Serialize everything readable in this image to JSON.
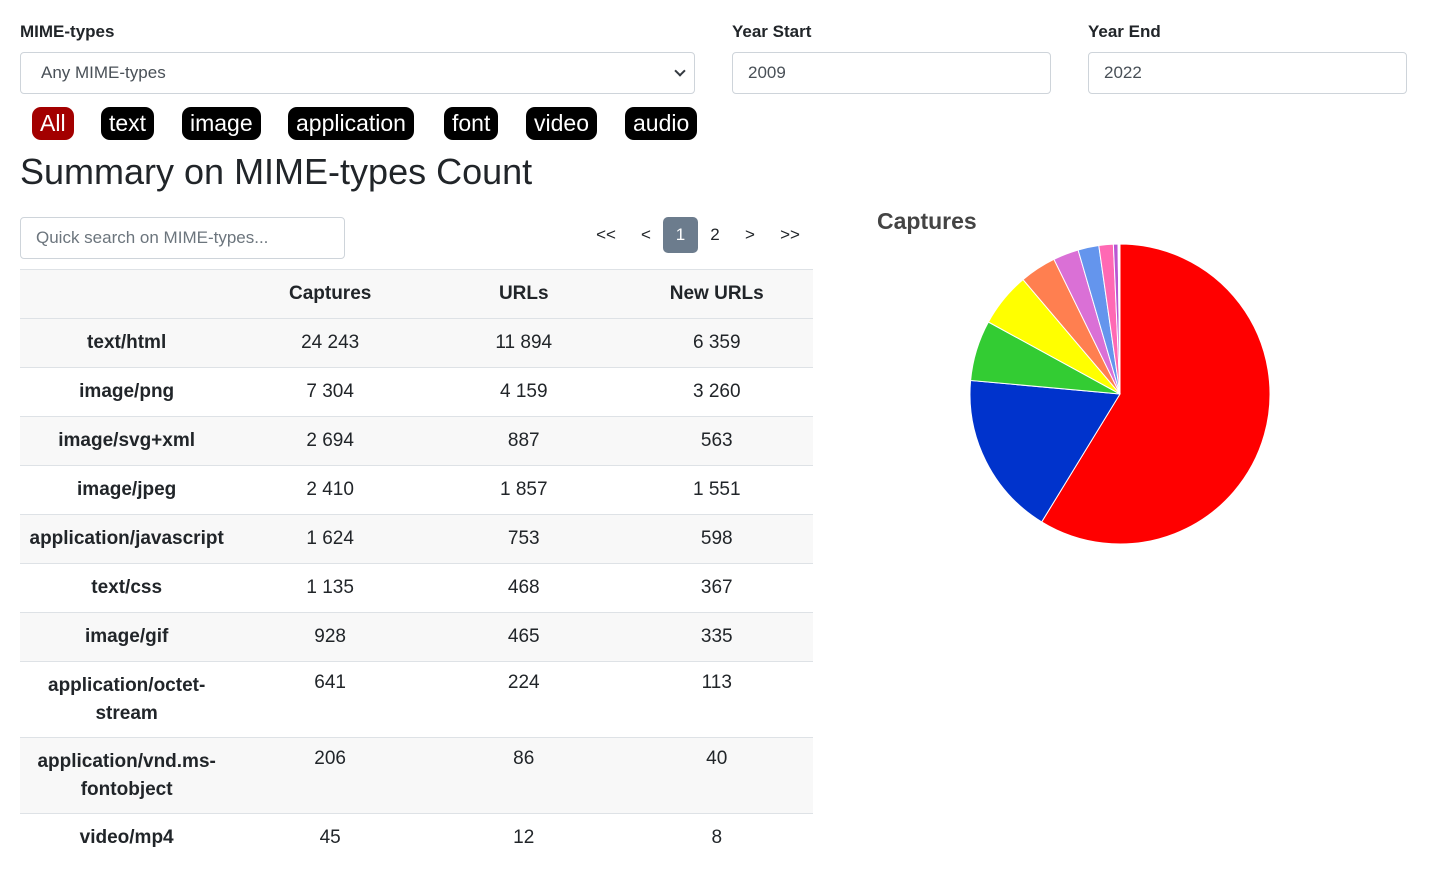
{
  "filters": {
    "mime_label": "MIME-types",
    "mime_selected": "Any MIME-types",
    "year_start_label": "Year Start",
    "year_start_value": "2009",
    "year_end_label": "Year End",
    "year_end_value": "2022"
  },
  "pills": [
    "All",
    "text",
    "image",
    "application",
    "font",
    "video",
    "audio"
  ],
  "active_pill": "All",
  "page_title": "Summary on MIME-types Count",
  "search": {
    "placeholder": "Quick search on MIME-types..."
  },
  "pagination": {
    "first": "<<",
    "prev": "<",
    "pages": [
      "1",
      "2"
    ],
    "current": "1",
    "next": ">",
    "last": ">>"
  },
  "table": {
    "columns": [
      "",
      "Captures",
      "URLs",
      "New URLs"
    ],
    "rows": [
      {
        "mime": "text/html",
        "captures": "24 243",
        "urls": "11 894",
        "new_urls": "6 359"
      },
      {
        "mime": "image/png",
        "captures": "7 304",
        "urls": "4 159",
        "new_urls": "3 260"
      },
      {
        "mime": "image/svg+xml",
        "captures": "2 694",
        "urls": "887",
        "new_urls": "563"
      },
      {
        "mime": "image/jpeg",
        "captures": "2 410",
        "urls": "1 857",
        "new_urls": "1 551"
      },
      {
        "mime": "application/javascript",
        "captures": "1 624",
        "urls": "753",
        "new_urls": "598"
      },
      {
        "mime": "text/css",
        "captures": "1 135",
        "urls": "468",
        "new_urls": "367"
      },
      {
        "mime": "image/gif",
        "captures": "928",
        "urls": "465",
        "new_urls": "335"
      },
      {
        "mime": "application/octet-stream",
        "captures": "641",
        "urls": "224",
        "new_urls": "113"
      },
      {
        "mime": "application/vnd.ms-fontobject",
        "captures": "206",
        "urls": "86",
        "new_urls": "40"
      },
      {
        "mime": "video/mp4",
        "captures": "45",
        "urls": "12",
        "new_urls": "8"
      }
    ]
  },
  "chart_data": {
    "type": "pie",
    "title": "Captures",
    "slices": [
      {
        "value": 24243,
        "color": "#ff0000"
      },
      {
        "value": 7304,
        "color": "#0033cc"
      },
      {
        "value": 2694,
        "color": "#33cc33"
      },
      {
        "value": 2410,
        "color": "#ffff00"
      },
      {
        "value": 1624,
        "color": "#ff7f50"
      },
      {
        "value": 1135,
        "color": "#da70d6"
      },
      {
        "value": 928,
        "color": "#6495ed"
      },
      {
        "value": 641,
        "color": "#ff69b4"
      },
      {
        "value": 206,
        "color": "#ba55d3"
      },
      {
        "value": 45,
        "color": "#32cd32"
      },
      {
        "value": 40,
        "color": "#6a5acd"
      }
    ]
  }
}
